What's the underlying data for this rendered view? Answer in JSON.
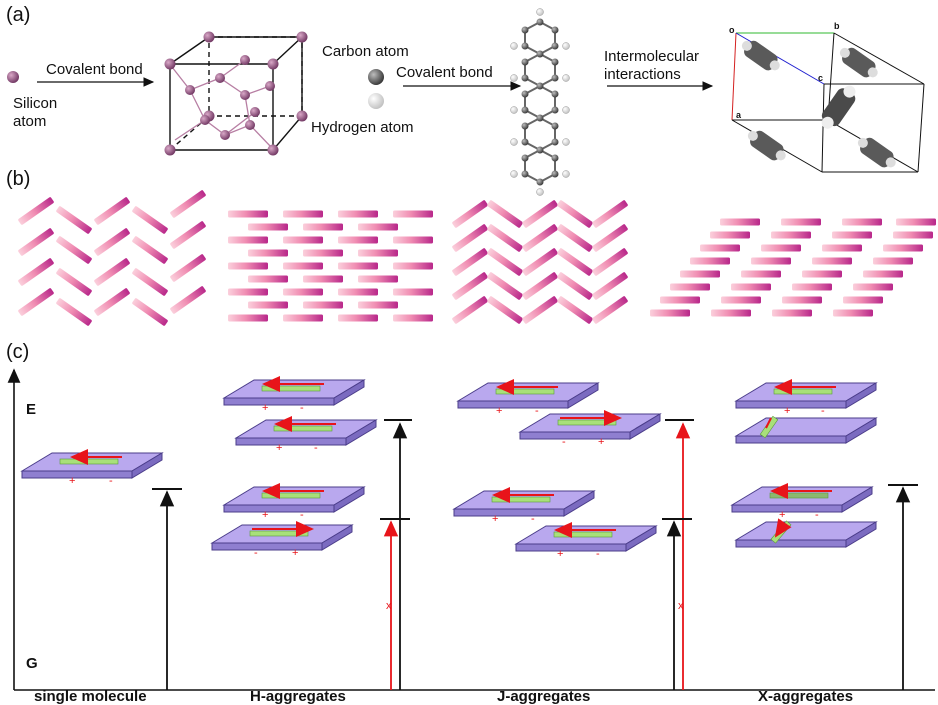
{
  "panels": {
    "a": "(a)",
    "b": "(b)",
    "c": "(c)"
  },
  "panel_a": {
    "silicon_atom": [
      "Silicon",
      "atom"
    ],
    "covalent_bond_1": "Covalent bond",
    "carbon_atom": "Carbon atom",
    "hydrogen_atom": "Hydrogen atom",
    "covalent_bond_2": "Covalent bond",
    "intermolecular": [
      "Intermolecular",
      "interactions"
    ],
    "crystal_axes": [
      "o",
      "b",
      "c",
      "a"
    ]
  },
  "panel_c": {
    "energy_high": "E",
    "energy_low": "G",
    "captions": [
      "single molecule",
      "H-aggregates",
      "J-aggregates",
      "X-aggregates"
    ],
    "charge_plus": "+",
    "charge_minus": "-"
  },
  "colors": {
    "plate": "#b7a6ec",
    "plate_edge": "#5a4a9a",
    "dipole": "#a8e07a",
    "arrow": "#e8141a",
    "atom": "#8a4a73",
    "rod_light": "#f7b0c8",
    "rod_dark": "#c22e8e"
  }
}
